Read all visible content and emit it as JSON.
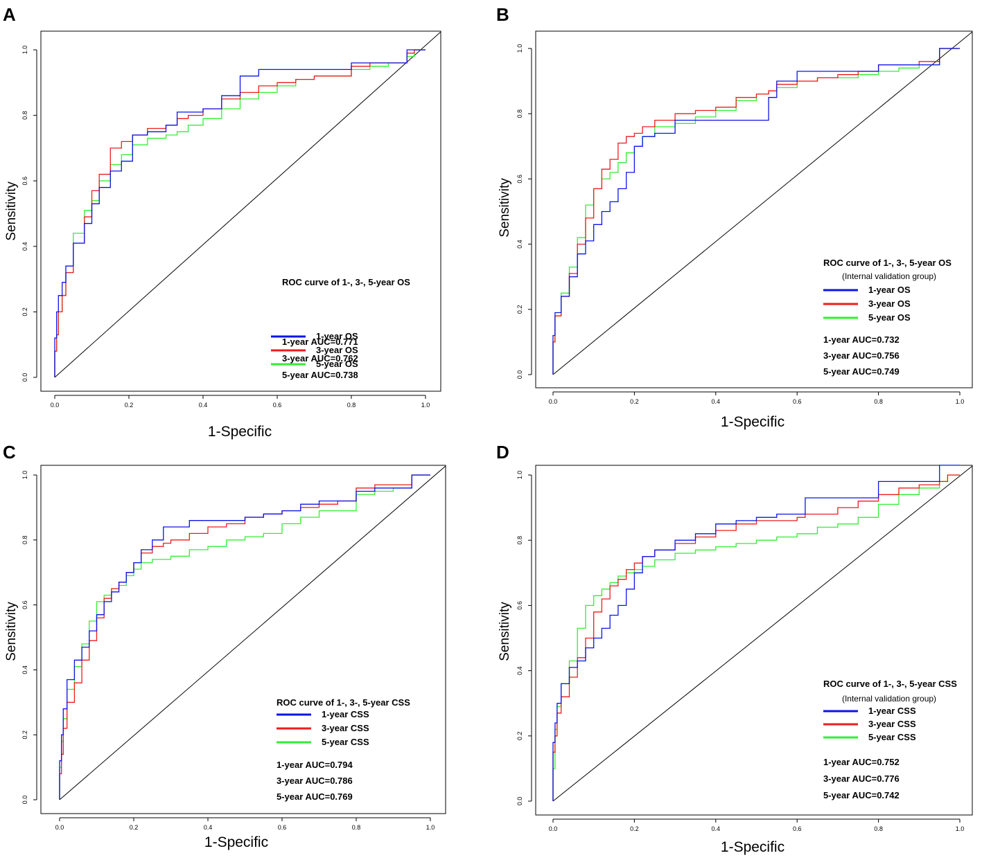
{
  "colors": {
    "one_year": "#0a14e6",
    "three_year": "#ee1c1c",
    "five_year": "#33ee33",
    "axis": "#000000"
  },
  "axis_labels": {
    "x": "1-Specific",
    "y": "Sensitivity"
  },
  "chart_data": [
    {
      "panel": "A",
      "type": "line",
      "xlim": [
        0,
        1
      ],
      "ylim": [
        0,
        1
      ],
      "xticks": [
        "0.0",
        "0.2",
        "0.4",
        "0.6",
        "0.8",
        "1.0"
      ],
      "yticks": [
        "0.0",
        "0.2",
        "0.4",
        "0.6",
        "0.8",
        "1.0"
      ],
      "xlabel": "1-Specific",
      "ylabel": "Sensitivity",
      "legend_title": "ROC curve of 1-, 3-, 5-year OS",
      "legend_subtitle": "",
      "auc_labels": [
        "1-year AUC=0.771",
        "3-year AUC=0.762",
        "5-year AUC=0.738"
      ],
      "diagonal": true,
      "series": [
        {
          "name": "1-year OS",
          "color": "#0a14e6",
          "x": [
            0,
            0.005,
            0.01,
            0.02,
            0.03,
            0.05,
            0.08,
            0.1,
            0.12,
            0.15,
            0.18,
            0.21,
            0.25,
            0.3,
            0.33,
            0.36,
            0.4,
            0.45,
            0.5,
            0.55,
            0.6,
            0.65,
            0.7,
            0.75,
            0.8,
            0.85,
            0.9,
            0.95,
            0.97,
            1.0
          ],
          "y": [
            0,
            0.12,
            0.2,
            0.25,
            0.29,
            0.34,
            0.41,
            0.47,
            0.53,
            0.58,
            0.63,
            0.66,
            0.74,
            0.75,
            0.77,
            0.81,
            0.81,
            0.82,
            0.86,
            0.92,
            0.94,
            0.94,
            0.94,
            0.94,
            0.94,
            0.96,
            0.96,
            0.96,
            1.0,
            1.0
          ]
        },
        {
          "name": "3-year OS",
          "color": "#ee1c1c",
          "x": [
            0,
            0.005,
            0.01,
            0.02,
            0.03,
            0.05,
            0.08,
            0.1,
            0.12,
            0.15,
            0.18,
            0.21,
            0.25,
            0.3,
            0.33,
            0.36,
            0.4,
            0.45,
            0.5,
            0.55,
            0.6,
            0.65,
            0.7,
            0.75,
            0.8,
            0.85,
            0.9,
            0.95,
            0.97,
            1.0
          ],
          "y": [
            0,
            0.08,
            0.13,
            0.2,
            0.25,
            0.32,
            0.41,
            0.49,
            0.57,
            0.62,
            0.7,
            0.72,
            0.74,
            0.76,
            0.77,
            0.79,
            0.8,
            0.82,
            0.85,
            0.87,
            0.89,
            0.9,
            0.91,
            0.92,
            0.92,
            0.95,
            0.96,
            0.96,
            0.99,
            1.0
          ]
        },
        {
          "name": "5-year OS",
          "color": "#33ee33",
          "x": [
            0,
            0.005,
            0.01,
            0.02,
            0.03,
            0.05,
            0.08,
            0.1,
            0.12,
            0.15,
            0.18,
            0.21,
            0.25,
            0.3,
            0.33,
            0.36,
            0.4,
            0.45,
            0.5,
            0.55,
            0.6,
            0.65,
            0.7,
            0.75,
            0.8,
            0.85,
            0.9,
            0.95,
            0.97,
            1.0
          ],
          "y": [
            0,
            0.08,
            0.13,
            0.2,
            0.25,
            0.32,
            0.44,
            0.51,
            0.54,
            0.6,
            0.65,
            0.68,
            0.71,
            0.73,
            0.74,
            0.75,
            0.77,
            0.79,
            0.82,
            0.85,
            0.87,
            0.89,
            0.91,
            0.92,
            0.92,
            0.94,
            0.95,
            0.96,
            0.98,
            1.0
          ]
        }
      ]
    },
    {
      "panel": "B",
      "type": "line",
      "xlim": [
        0,
        1
      ],
      "ylim": [
        0,
        1
      ],
      "xticks": [
        "0.0",
        "0.2",
        "0.4",
        "0.6",
        "0.8",
        "1.0"
      ],
      "yticks": [
        "0.0",
        "0.2",
        "0.4",
        "0.6",
        "0.8",
        "1.0"
      ],
      "xlabel": "1-Specific",
      "ylabel": "Sensitivity",
      "legend_title": "ROC curve of 1-, 3-, 5-year OS",
      "legend_subtitle": "(Internal validation group)",
      "auc_labels": [
        "1-year AUC=0.732",
        "3-year AUC=0.756",
        "5-year AUC=0.749"
      ],
      "diagonal": true,
      "series": [
        {
          "name": "1-year OS",
          "color": "#0a14e6",
          "x": [
            0,
            0.005,
            0.02,
            0.04,
            0.06,
            0.08,
            0.1,
            0.12,
            0.14,
            0.16,
            0.18,
            0.2,
            0.22,
            0.25,
            0.3,
            0.35,
            0.4,
            0.45,
            0.5,
            0.53,
            0.55,
            0.6,
            0.65,
            0.7,
            0.75,
            0.8,
            0.85,
            0.9,
            0.95,
            1.0
          ],
          "y": [
            0,
            0.12,
            0.19,
            0.24,
            0.3,
            0.37,
            0.41,
            0.46,
            0.5,
            0.53,
            0.57,
            0.62,
            0.7,
            0.73,
            0.74,
            0.78,
            0.78,
            0.78,
            0.78,
            0.78,
            0.85,
            0.9,
            0.93,
            0.93,
            0.93,
            0.93,
            0.95,
            0.95,
            0.95,
            1.0
          ]
        },
        {
          "name": "3-year OS",
          "color": "#ee1c1c",
          "x": [
            0,
            0.005,
            0.02,
            0.04,
            0.06,
            0.08,
            0.1,
            0.12,
            0.14,
            0.16,
            0.18,
            0.2,
            0.22,
            0.25,
            0.3,
            0.35,
            0.4,
            0.45,
            0.5,
            0.53,
            0.55,
            0.6,
            0.65,
            0.7,
            0.75,
            0.8,
            0.85,
            0.9,
            0.95,
            1.0
          ],
          "y": [
            0,
            0.1,
            0.18,
            0.24,
            0.31,
            0.4,
            0.48,
            0.57,
            0.63,
            0.66,
            0.71,
            0.73,
            0.74,
            0.76,
            0.78,
            0.8,
            0.81,
            0.82,
            0.85,
            0.86,
            0.87,
            0.89,
            0.9,
            0.91,
            0.92,
            0.93,
            0.95,
            0.95,
            0.96,
            1.0
          ]
        },
        {
          "name": "5-year OS",
          "color": "#33ee33",
          "x": [
            0,
            0.005,
            0.02,
            0.04,
            0.06,
            0.08,
            0.1,
            0.12,
            0.14,
            0.16,
            0.18,
            0.2,
            0.22,
            0.25,
            0.3,
            0.35,
            0.4,
            0.45,
            0.5,
            0.53,
            0.55,
            0.6,
            0.65,
            0.7,
            0.75,
            0.8,
            0.85,
            0.9,
            0.95,
            1.0
          ],
          "y": [
            0,
            0.1,
            0.18,
            0.25,
            0.33,
            0.42,
            0.52,
            0.57,
            0.6,
            0.62,
            0.65,
            0.68,
            0.7,
            0.73,
            0.76,
            0.77,
            0.79,
            0.81,
            0.84,
            0.86,
            0.87,
            0.88,
            0.9,
            0.91,
            0.91,
            0.92,
            0.93,
            0.94,
            0.95,
            1.0
          ]
        }
      ]
    },
    {
      "panel": "C",
      "type": "line",
      "xlim": [
        0,
        1
      ],
      "ylim": [
        0,
        1
      ],
      "xticks": [
        "0.0",
        "0.2",
        "0.4",
        "0.6",
        "0.8",
        "1.0"
      ],
      "yticks": [
        "0.0",
        "0.2",
        "0.4",
        "0.6",
        "0.8",
        "1.0"
      ],
      "xlabel": "1-Specific",
      "ylabel": "Sensitivity",
      "legend_title": "ROC curve of 1-, 3-, 5-year CSS",
      "legend_subtitle": "",
      "auc_labels": [
        "1-year AUC=0.794",
        "3-year AUC=0.786",
        "5-year AUC=0.769"
      ],
      "diagonal": true,
      "series": [
        {
          "name": "1-year CSS",
          "color": "#0a14e6",
          "x": [
            0,
            0.005,
            0.01,
            0.02,
            0.04,
            0.06,
            0.08,
            0.1,
            0.12,
            0.14,
            0.16,
            0.18,
            0.2,
            0.22,
            0.25,
            0.28,
            0.3,
            0.35,
            0.4,
            0.45,
            0.5,
            0.55,
            0.6,
            0.65,
            0.7,
            0.75,
            0.8,
            0.85,
            0.9,
            0.95,
            1.0
          ],
          "y": [
            0,
            0.12,
            0.2,
            0.28,
            0.37,
            0.43,
            0.47,
            0.52,
            0.57,
            0.61,
            0.64,
            0.67,
            0.7,
            0.73,
            0.77,
            0.8,
            0.84,
            0.84,
            0.86,
            0.86,
            0.86,
            0.87,
            0.88,
            0.89,
            0.91,
            0.92,
            0.92,
            0.95,
            0.96,
            0.96,
            1.0
          ]
        },
        {
          "name": "3-year CSS",
          "color": "#ee1c1c",
          "x": [
            0,
            0.005,
            0.01,
            0.02,
            0.04,
            0.06,
            0.08,
            0.1,
            0.12,
            0.14,
            0.16,
            0.18,
            0.2,
            0.22,
            0.25,
            0.28,
            0.3,
            0.35,
            0.4,
            0.45,
            0.5,
            0.55,
            0.6,
            0.65,
            0.7,
            0.75,
            0.8,
            0.85,
            0.9,
            0.95,
            1.0
          ],
          "y": [
            0,
            0.08,
            0.14,
            0.22,
            0.3,
            0.36,
            0.43,
            0.49,
            0.56,
            0.62,
            0.65,
            0.67,
            0.7,
            0.73,
            0.76,
            0.78,
            0.79,
            0.8,
            0.82,
            0.84,
            0.85,
            0.87,
            0.88,
            0.89,
            0.9,
            0.91,
            0.92,
            0.96,
            0.97,
            0.97,
            1.0
          ]
        },
        {
          "name": "5-year CSS",
          "color": "#33ee33",
          "x": [
            0,
            0.005,
            0.01,
            0.02,
            0.04,
            0.06,
            0.08,
            0.1,
            0.12,
            0.14,
            0.16,
            0.18,
            0.2,
            0.22,
            0.25,
            0.28,
            0.3,
            0.35,
            0.4,
            0.45,
            0.5,
            0.55,
            0.6,
            0.65,
            0.7,
            0.75,
            0.8,
            0.85,
            0.9,
            0.95,
            1.0
          ],
          "y": [
            0,
            0.1,
            0.18,
            0.25,
            0.34,
            0.41,
            0.48,
            0.55,
            0.61,
            0.63,
            0.65,
            0.66,
            0.69,
            0.71,
            0.73,
            0.74,
            0.74,
            0.75,
            0.77,
            0.78,
            0.8,
            0.81,
            0.82,
            0.85,
            0.87,
            0.89,
            0.89,
            0.94,
            0.95,
            0.96,
            1.0
          ]
        }
      ]
    },
    {
      "panel": "D",
      "type": "line",
      "xlim": [
        0,
        1
      ],
      "ylim": [
        0,
        1
      ],
      "xticks": [
        "0.0",
        "0.2",
        "0.4",
        "0.6",
        "0.8",
        "1.0"
      ],
      "yticks": [
        "0.0",
        "0.2",
        "0.4",
        "0.6",
        "0.8",
        "1.0"
      ],
      "xlabel": "1-Specific",
      "ylabel": "Sensitivity",
      "legend_title": "ROC curve of 1-, 3-, 5-year CSS",
      "legend_subtitle": "(Internal validation group)",
      "auc_labels": [
        "1-year AUC=0.752",
        "3-year AUC=0.776",
        "5-year AUC=0.742"
      ],
      "diagonal": true,
      "series": [
        {
          "name": "1-year CSS",
          "color": "#0a14e6",
          "x": [
            0,
            0.005,
            0.01,
            0.02,
            0.04,
            0.06,
            0.08,
            0.1,
            0.12,
            0.14,
            0.16,
            0.18,
            0.2,
            0.22,
            0.25,
            0.3,
            0.35,
            0.4,
            0.45,
            0.5,
            0.55,
            0.6,
            0.62,
            0.65,
            0.7,
            0.75,
            0.8,
            0.85,
            0.9,
            0.95,
            0.97,
            1.0
          ],
          "y": [
            0,
            0.18,
            0.24,
            0.3,
            0.36,
            0.41,
            0.43,
            0.47,
            0.5,
            0.53,
            0.57,
            0.6,
            0.65,
            0.7,
            0.75,
            0.77,
            0.8,
            0.82,
            0.85,
            0.86,
            0.87,
            0.88,
            0.88,
            0.93,
            0.93,
            0.93,
            0.93,
            0.98,
            0.98,
            0.98,
            1.03,
            1.03
          ]
        },
        {
          "name": "3-year CSS",
          "color": "#ee1c1c",
          "x": [
            0,
            0.005,
            0.01,
            0.02,
            0.04,
            0.06,
            0.08,
            0.1,
            0.12,
            0.14,
            0.16,
            0.18,
            0.2,
            0.22,
            0.25,
            0.3,
            0.35,
            0.4,
            0.45,
            0.5,
            0.55,
            0.6,
            0.62,
            0.65,
            0.7,
            0.75,
            0.8,
            0.85,
            0.9,
            0.95,
            0.97,
            1.0
          ],
          "y": [
            0,
            0.15,
            0.2,
            0.27,
            0.32,
            0.38,
            0.44,
            0.5,
            0.58,
            0.62,
            0.66,
            0.68,
            0.71,
            0.73,
            0.75,
            0.77,
            0.79,
            0.81,
            0.83,
            0.85,
            0.86,
            0.86,
            0.87,
            0.88,
            0.88,
            0.9,
            0.92,
            0.94,
            0.96,
            0.97,
            0.98,
            1.0
          ]
        },
        {
          "name": "5-year CSS",
          "color": "#33ee33",
          "x": [
            0,
            0.005,
            0.01,
            0.02,
            0.04,
            0.06,
            0.08,
            0.1,
            0.12,
            0.14,
            0.16,
            0.18,
            0.2,
            0.22,
            0.25,
            0.3,
            0.35,
            0.4,
            0.45,
            0.5,
            0.55,
            0.6,
            0.62,
            0.65,
            0.7,
            0.75,
            0.8,
            0.85,
            0.9,
            0.95,
            0.97,
            1.0
          ],
          "y": [
            0,
            0.1,
            0.22,
            0.29,
            0.36,
            0.43,
            0.53,
            0.6,
            0.63,
            0.65,
            0.67,
            0.69,
            0.7,
            0.71,
            0.72,
            0.74,
            0.76,
            0.77,
            0.78,
            0.79,
            0.8,
            0.81,
            0.82,
            0.82,
            0.84,
            0.85,
            0.87,
            0.91,
            0.94,
            0.96,
            0.98,
            1.0
          ]
        }
      ]
    }
  ]
}
